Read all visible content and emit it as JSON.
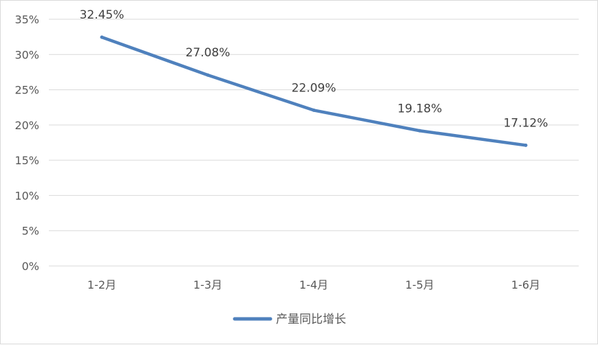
{
  "chart_data": {
    "type": "line",
    "title": "",
    "xlabel": "",
    "ylabel": "",
    "categories": [
      "1-2月",
      "1-3月",
      "1-4月",
      "1-5月",
      "1-6月"
    ],
    "series": [
      {
        "name": "产量同比增长",
        "values": [
          32.45,
          27.08,
          22.09,
          19.18,
          17.12
        ],
        "data_labels": [
          "32.45%",
          "27.08%",
          "22.09%",
          "19.18%",
          "17.12%"
        ],
        "color": "#4f81bd"
      }
    ],
    "ylim": [
      0,
      35
    ],
    "yticks": [
      0,
      5,
      10,
      15,
      20,
      25,
      30,
      35
    ],
    "ytick_labels": [
      "0%",
      "5%",
      "10%",
      "15%",
      "20%",
      "25%",
      "30%",
      "35%"
    ],
    "grid": true,
    "legend_position": "bottom",
    "gridline_color": "#d9d9d9",
    "axis_text_color": "#595959"
  }
}
